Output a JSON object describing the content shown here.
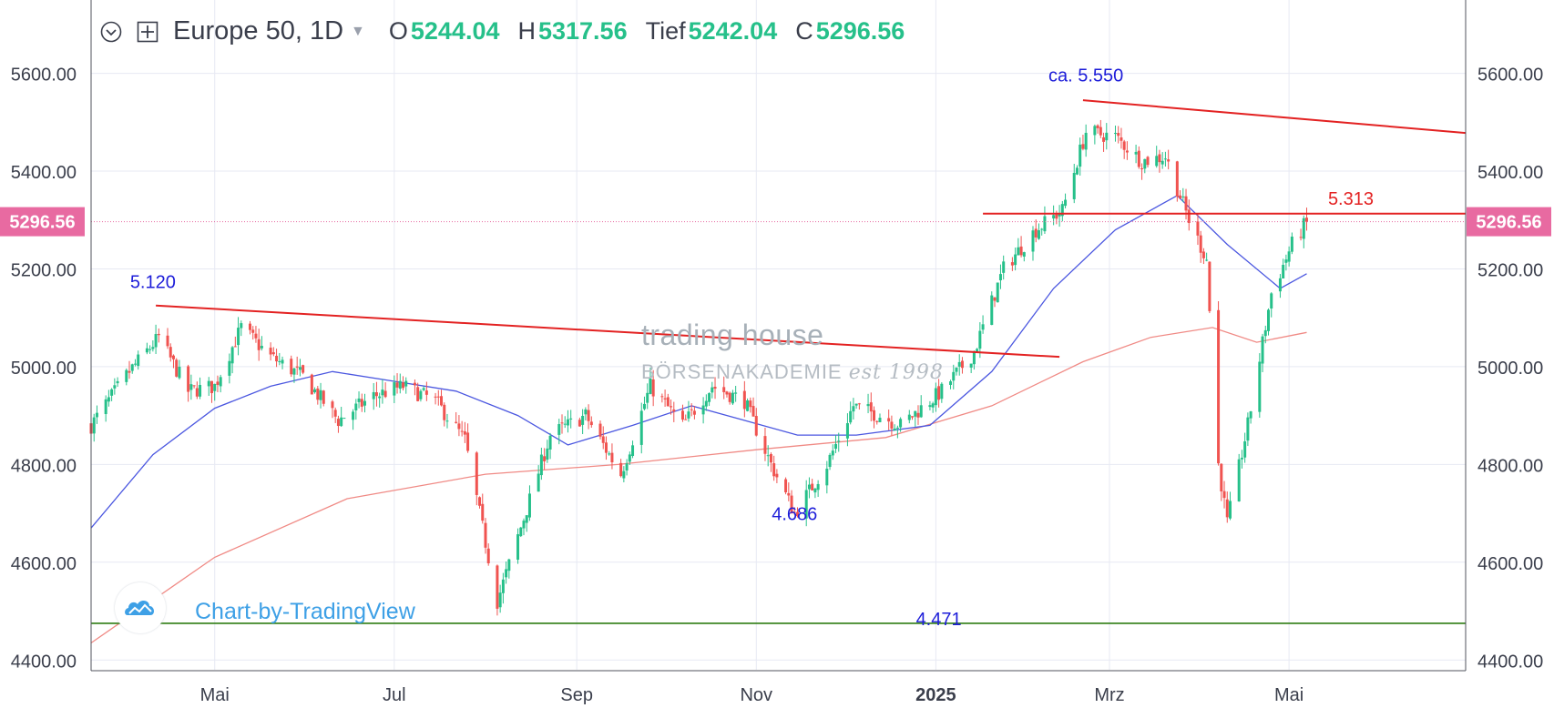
{
  "legend": {
    "symbol": "Europe 50, 1D",
    "open_label": "O",
    "open_value": "5244.04",
    "high_label": "H",
    "high_value": "5317.56",
    "low_label": "Tief",
    "low_value": "5242.04",
    "close_label": "C",
    "close_value": "5296.56"
  },
  "watermark": {
    "text": "Chart-by-TradingView"
  },
  "brand": {
    "name": "trading house",
    "sub": "BÖRSENAKADEMIE",
    "est": "est 1998"
  },
  "colors": {
    "up": "#26c08a",
    "down": "#f05350",
    "ma_fast": "#4b57e0",
    "ma_slow": "#f08a85",
    "trendline": "#e32222",
    "support": "#2e7d12",
    "price_tag": "#e86aa1",
    "annotation_blue": "#1d1dd9",
    "annotation_red": "#e32222",
    "grid": "#e7e9f3"
  },
  "chart_data": {
    "type": "candlestick",
    "y_range": [
      4380,
      5750
    ],
    "y_ticks": [
      "4400.00",
      "4600.00",
      "4800.00",
      "5000.00",
      "5200.00",
      "5400.00",
      "5600.00"
    ],
    "x_ticks": [
      "Mai",
      "Jul",
      "Sep",
      "Nov",
      "2025",
      "Mrz",
      "Mai"
    ],
    "last_price_label": "5296.56",
    "last_price": 5296.56,
    "series": [
      {
        "name": "Europe 50",
        "kind": "close",
        "x": [
          "2024-03-20",
          "2024-04-02",
          "2024-04-12",
          "2024-04-22",
          "2024-05-01",
          "2024-05-10",
          "2024-05-20",
          "2024-05-31",
          "2024-06-12",
          "2024-06-24",
          "2024-07-04",
          "2024-07-15",
          "2024-07-25",
          "2024-08-05",
          "2024-08-14",
          "2024-08-23",
          "2024-09-04",
          "2024-09-16",
          "2024-09-26",
          "2024-10-07",
          "2024-10-17",
          "2024-10-28",
          "2024-11-06",
          "2024-11-14",
          "2024-11-25",
          "2024-12-04",
          "2024-12-13",
          "2024-12-20",
          "2025-01-03",
          "2025-01-14",
          "2025-01-24",
          "2025-02-04",
          "2025-02-13",
          "2025-02-21",
          "2025-03-03",
          "2025-03-12",
          "2025-03-20",
          "2025-03-28",
          "2025-04-03",
          "2025-04-07",
          "2025-04-10",
          "2025-04-17",
          "2025-04-25",
          "2025-05-02",
          "2025-05-07"
        ],
        "close": [
          4880,
          4990,
          5060,
          4950,
          4960,
          5080,
          5020,
          4980,
          4890,
          4940,
          4960,
          4930,
          4850,
          4520,
          4690,
          4860,
          4900,
          4780,
          4960,
          4880,
          4960,
          4930,
          4800,
          4700,
          4800,
          4920,
          4900,
          4880,
          4950,
          5030,
          5200,
          5280,
          5320,
          5480,
          5470,
          5420,
          5430,
          5300,
          5220,
          4800,
          4680,
          4880,
          5150,
          5250,
          5296.56
        ]
      },
      {
        "name": "MA fast",
        "kind": "line",
        "x": [
          "2024-03-20",
          "2024-04-10",
          "2024-05-01",
          "2024-05-20",
          "2024-06-10",
          "2024-07-01",
          "2024-07-22",
          "2024-08-12",
          "2024-08-29",
          "2024-09-20",
          "2024-10-10",
          "2024-10-25",
          "2024-11-15",
          "2024-12-05",
          "2024-12-30",
          "2025-01-20",
          "2025-02-10",
          "2025-03-03",
          "2025-03-24",
          "2025-04-10",
          "2025-04-28",
          "2025-05-07"
        ],
        "values": [
          4670,
          4820,
          4915,
          4960,
          4990,
          4970,
          4950,
          4900,
          4840,
          4880,
          4920,
          4895,
          4860,
          4860,
          4880,
          4990,
          5160,
          5280,
          5350,
          5250,
          5160,
          5190
        ]
      },
      {
        "name": "MA slow",
        "kind": "line",
        "x": [
          "2024-03-20",
          "2024-05-01",
          "2024-06-15",
          "2024-08-01",
          "2024-09-15",
          "2024-11-01",
          "2024-12-15",
          "2025-01-20",
          "2025-02-20",
          "2025-03-15",
          "2025-04-05",
          "2025-04-20",
          "2025-05-07"
        ],
        "values": [
          4435,
          4610,
          4730,
          4780,
          4800,
          4830,
          4855,
          4920,
          5010,
          5060,
          5080,
          5050,
          5070
        ]
      }
    ],
    "annotations": [
      {
        "text": "5.120",
        "x": "2024-04-10",
        "y": 5120,
        "color": "blue"
      },
      {
        "text": "4.686",
        "x": "2024-11-14",
        "y": 4686,
        "color": "blue"
      },
      {
        "text": "4.471",
        "x": "2025-01-02",
        "y": 4471,
        "color": "blue"
      },
      {
        "text": "ca. 5.550",
        "x": "2025-02-21",
        "y": 5550,
        "color": "blue"
      },
      {
        "text": "5.313",
        "x": "2025-05-22",
        "y": 5313,
        "color": "red"
      }
    ],
    "lines": [
      {
        "kind": "trendline",
        "from": [
          "2024-04-11",
          5125
        ],
        "to": [
          "2025-02-12",
          5020
        ]
      },
      {
        "kind": "trendline",
        "from": [
          "2025-02-20",
          5545
        ],
        "to": [
          "2025-06-30",
          5478
        ]
      },
      {
        "kind": "horizontal",
        "from": [
          "2025-01-17",
          5313
        ],
        "to": [
          "2025-06-30",
          5313
        ]
      },
      {
        "kind": "horizontal",
        "from": [
          "2024-03-20",
          4475
        ],
        "to": [
          "2025-06-30",
          4475
        ]
      }
    ]
  }
}
